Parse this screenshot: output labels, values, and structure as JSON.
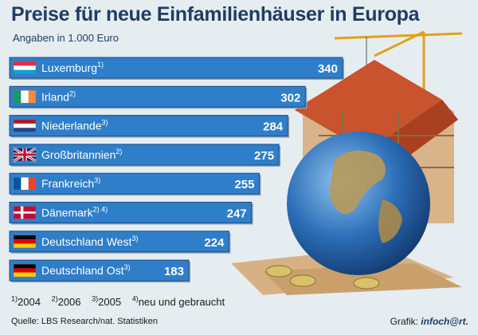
{
  "chart_data": {
    "type": "bar",
    "title": "Preise für neue Einfamilienhäuser in Europa",
    "subtitle": "Angaben in 1.000 Euro",
    "categories": [
      "Luxemburg",
      "Irland",
      "Niederlande",
      "Großbritannien",
      "Frankreich",
      "Dänemark",
      "Deutschland West",
      "Deutschland Ost"
    ],
    "footnote_refs": [
      "1)",
      "2)",
      "3)",
      "2)",
      "3)",
      "2) 4)",
      "3)",
      "3)"
    ],
    "values": [
      340,
      302,
      284,
      275,
      255,
      247,
      224,
      183
    ],
    "flags": [
      "flag-luxembourg",
      "flag-ireland",
      "flag-netherlands",
      "flag-uk",
      "flag-france",
      "flag-denmark",
      "flag-germany",
      "flag-germany"
    ],
    "orientation": "horizontal",
    "xlim": [
      0,
      340
    ],
    "colors": {
      "bar": "#2f7ec9",
      "bar_edge": "#1a4f8a"
    }
  },
  "footnotes": [
    {
      "mark": "1)",
      "text": "2004"
    },
    {
      "mark": "2)",
      "text": "2006"
    },
    {
      "mark": "3)",
      "text": "2005"
    },
    {
      "mark": "4)",
      "text": "neu und gebraucht"
    }
  ],
  "source": "Quelle: LBS Research/nat. Statistiken",
  "credit": {
    "label": "Grafik:",
    "brand": "infoch@rt."
  }
}
